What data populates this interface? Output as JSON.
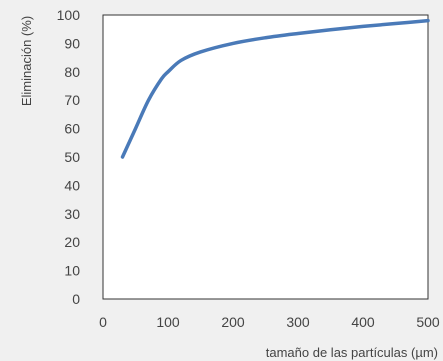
{
  "chart_data": {
    "type": "line",
    "title": "",
    "xlabel": "tamaño de las partículas (µm)",
    "ylabel": "Eliminación (%)",
    "xlim": [
      0,
      500
    ],
    "ylim": [
      0,
      100
    ],
    "xticks": [
      0,
      100,
      200,
      300,
      400,
      500
    ],
    "yticks": [
      0,
      10,
      20,
      30,
      40,
      50,
      60,
      70,
      80,
      90,
      100
    ],
    "grid": true,
    "legend": "none",
    "series": [
      {
        "color": "#4a7ab8",
        "x": [
          30,
          50,
          70,
          90,
          100,
          120,
          150,
          200,
          250,
          300,
          350,
          400,
          450,
          500
        ],
        "y": [
          50,
          60,
          70,
          77.5,
          80,
          84,
          87,
          90,
          92,
          93.5,
          94.8,
          96,
          97,
          98
        ]
      }
    ]
  }
}
